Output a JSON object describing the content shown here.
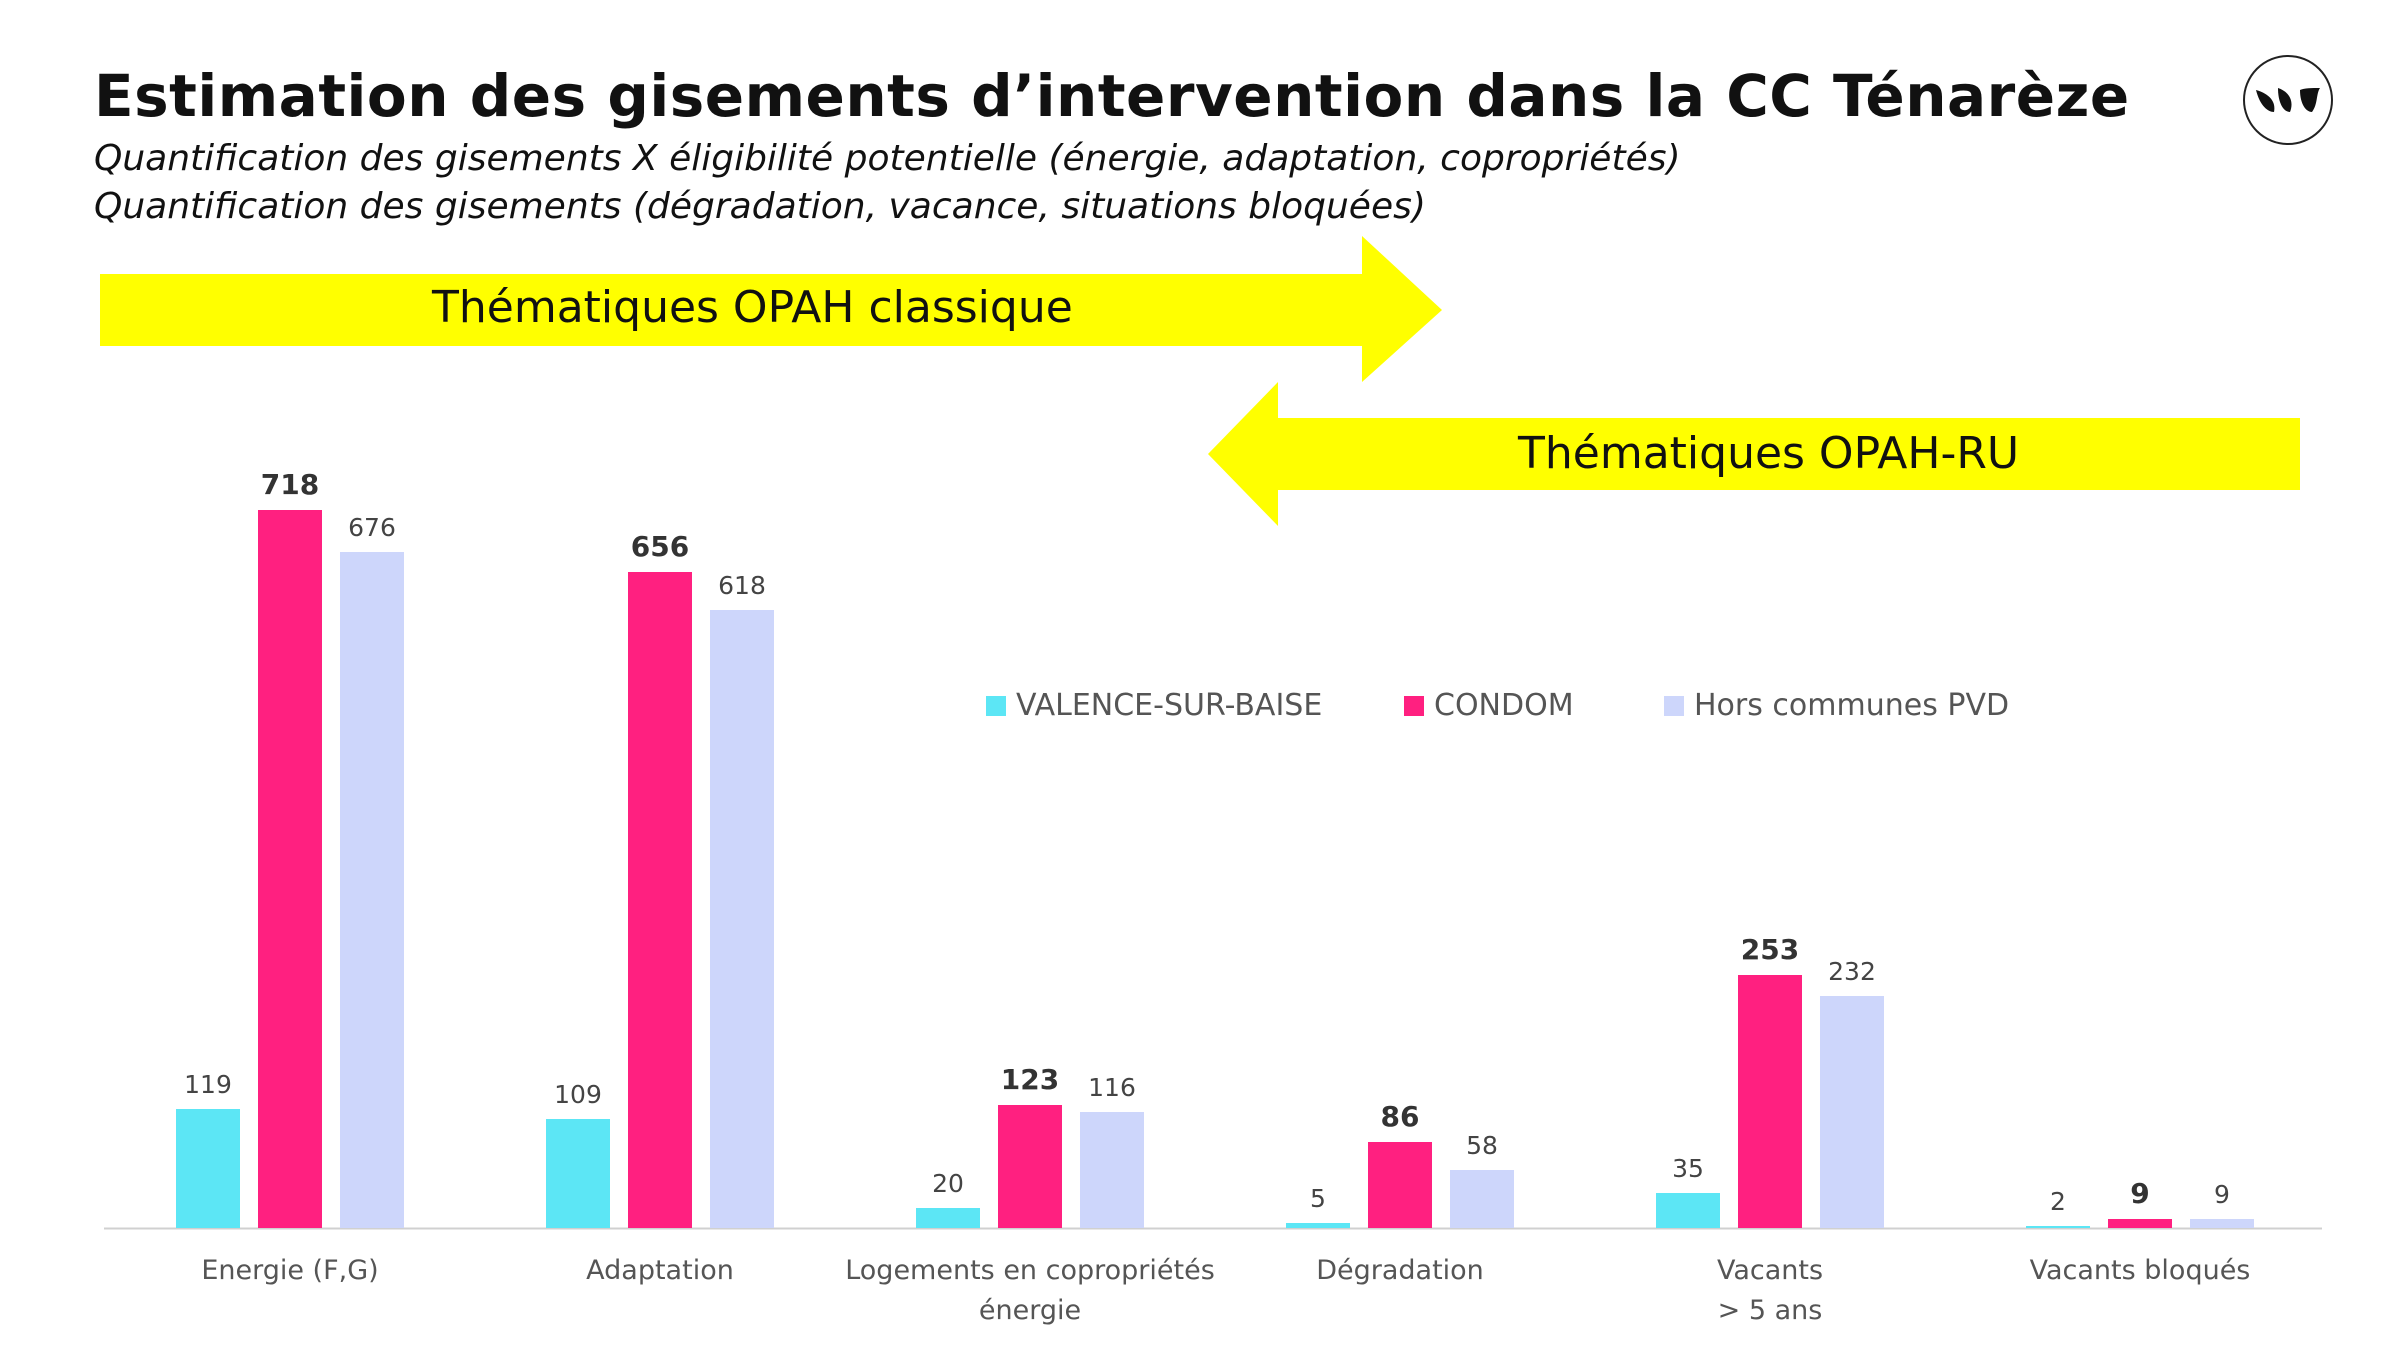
{
  "header": {
    "title": "Estimation des gisements d’intervention dans la CC Ténarèze",
    "subtitle_line1": "Quantification des gisements X éligibilité potentielle (énergie, adaptation, copropriétés)",
    "subtitle_line2": "Quantification des gisements (dégradation, vacance, situations bloquées)"
  },
  "logo": {
    "icon": "leaves-logo-icon"
  },
  "arrows": {
    "opah_classique": {
      "label": "Thématiques OPAH classique",
      "color": "#FFFF00",
      "direction": "right"
    },
    "opah_ru": {
      "label": "Thématiques OPAH-RU",
      "color": "#FFFF00",
      "direction": "left"
    }
  },
  "legend": [
    {
      "label": "VALENCE-SUR-BAISE",
      "color": "#5CE6F5"
    },
    {
      "label": "CONDOM",
      "color": "#FF2080"
    },
    {
      "label": "Hors communes PVD",
      "color": "#CDD6FB"
    }
  ],
  "chart_data": {
    "type": "bar",
    "categories": [
      [
        "Energie (F,G)"
      ],
      [
        "Adaptation"
      ],
      [
        "Logements en copropriétés",
        "énergie"
      ],
      [
        "Dégradation"
      ],
      [
        "Vacants",
        "> 5 ans"
      ],
      [
        "Vacants bloqués"
      ]
    ],
    "series": [
      {
        "name": "VALENCE-SUR-BAISE",
        "color": "#5CE6F5",
        "values": [
          119,
          109,
          20,
          5,
          35,
          2
        ],
        "label_bold": false
      },
      {
        "name": "CONDOM",
        "color": "#FF2080",
        "values": [
          718,
          656,
          123,
          86,
          253,
          9
        ],
        "label_bold": true
      },
      {
        "name": "Hors communes PVD",
        "color": "#CDD6FB",
        "values": [
          676,
          618,
          116,
          58,
          232,
          9
        ],
        "label_bold": false
      }
    ],
    "ylim": [
      0,
      718
    ],
    "grid": false,
    "legend_position": "top-right"
  }
}
